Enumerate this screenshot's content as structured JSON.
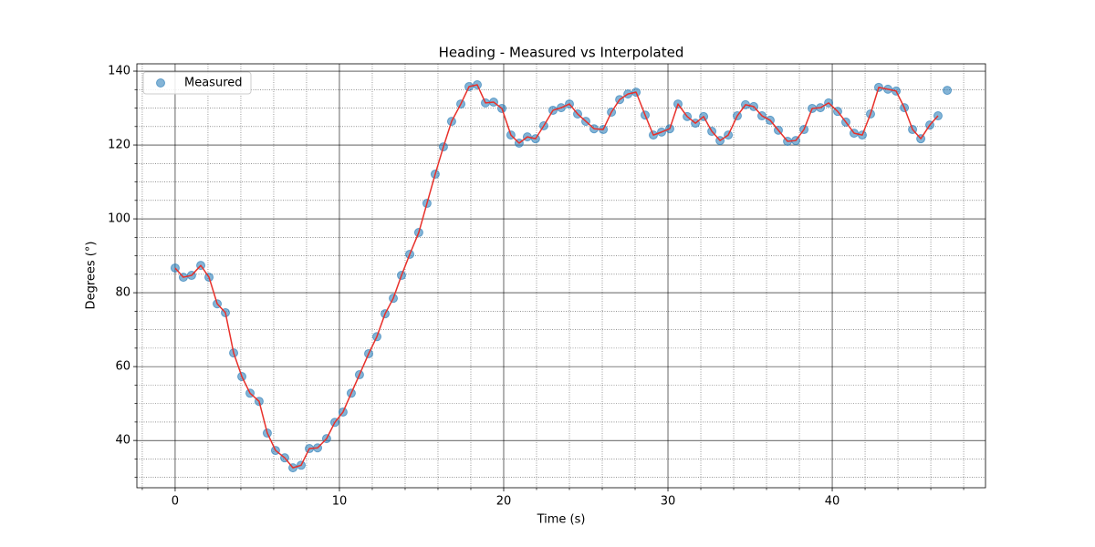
{
  "chart_data": {
    "type": "scatter-line",
    "title": "Heading - Measured vs Interpolated",
    "xlabel": "Time (s)",
    "ylabel": "Degrees (°)",
    "xlim": [
      -2.33,
      49.33
    ],
    "ylim": [
      27.2,
      141.98
    ],
    "xticks": [
      0,
      10,
      20,
      30,
      40
    ],
    "yticks": [
      40,
      60,
      80,
      100,
      120,
      140
    ],
    "xminor": [
      -2,
      2,
      4,
      6,
      8,
      12,
      14,
      16,
      18,
      22,
      24,
      26,
      28,
      32,
      34,
      36,
      38,
      42,
      44,
      46,
      48
    ],
    "yminor": [
      30,
      35,
      45,
      50,
      55,
      65,
      70,
      75,
      85,
      90,
      95,
      105,
      110,
      115,
      125,
      130,
      135
    ],
    "grid": true,
    "legend": "upper left",
    "x": [
      0,
      0.5,
      1.0,
      1.56,
      2.06,
      2.56,
      3.06,
      3.56,
      4.06,
      4.56,
      5.11,
      5.61,
      6.11,
      6.67,
      7.17,
      7.67,
      8.17,
      8.67,
      9.22,
      9.72,
      10.22,
      10.72,
      11.22,
      11.78,
      12.28,
      12.78,
      13.28,
      13.78,
      14.28,
      14.83,
      15.33,
      15.83,
      16.33,
      16.83,
      17.39,
      17.89,
      18.39,
      18.89,
      19.39,
      19.89,
      20.44,
      20.94,
      21.44,
      21.94,
      22.44,
      23.0,
      23.5,
      24.0,
      24.5,
      25.0,
      25.5,
      26.06,
      26.56,
      27.06,
      27.56,
      28.06,
      28.61,
      29.11,
      29.61,
      30.11,
      30.61,
      31.17,
      31.67,
      32.17,
      32.67,
      33.17,
      33.67,
      34.22,
      34.72,
      35.22,
      35.72,
      36.22,
      36.72,
      37.28,
      37.78,
      38.28,
      38.78,
      39.28,
      39.78,
      40.33,
      40.83,
      41.33,
      41.83,
      42.33,
      42.83,
      43.39,
      43.89,
      44.39,
      44.89,
      45.39,
      45.94,
      46.44,
      47.0
    ],
    "series": [
      {
        "name": "Measured",
        "color": "#1f77b4",
        "kind": "scatter",
        "values": [
          86.7,
          84.2,
          84.7,
          87.4,
          84.2,
          77.0,
          74.6,
          63.7,
          57.3,
          52.8,
          50.6,
          42.0,
          37.3,
          35.3,
          32.6,
          33.3,
          37.8,
          38.0,
          40.5,
          44.9,
          47.7,
          52.8,
          57.8,
          63.5,
          68.1,
          74.3,
          78.5,
          84.7,
          90.4,
          96.3,
          104.2,
          112.1,
          119.5,
          126.4,
          131.1,
          135.8,
          136.3,
          131.4,
          131.6,
          129.9,
          122.7,
          120.5,
          122.2,
          121.7,
          125.2,
          129.4,
          130.1,
          131.1,
          128.4,
          126.4,
          124.4,
          124.2,
          128.9,
          132.3,
          133.8,
          134.3,
          128.1,
          122.7,
          123.5,
          124.4,
          131.1,
          127.7,
          125.9,
          127.7,
          123.7,
          121.2,
          122.7,
          127.9,
          130.9,
          130.4,
          127.9,
          126.7,
          124.0,
          121.0,
          121.2,
          124.2,
          129.9,
          130.1,
          131.4,
          129.1,
          126.2,
          123.2,
          122.7,
          128.4,
          135.6,
          135.1,
          134.6,
          130.1,
          124.2,
          121.7,
          125.4,
          127.9,
          134.8
        ]
      },
      {
        "color": "#e8302a",
        "kind": "line",
        "values": [
          86.7,
          84.2,
          84.7,
          87.4,
          84.2,
          77.0,
          74.6,
          63.7,
          57.3,
          52.8,
          50.6,
          42.0,
          37.3,
          35.3,
          32.6,
          33.3,
          37.8,
          38.0,
          40.5,
          44.9,
          47.7,
          52.8,
          57.8,
          63.5,
          68.1,
          74.3,
          78.5,
          84.7,
          90.4,
          96.3,
          104.2,
          112.1,
          119.5,
          126.4,
          131.1,
          135.8,
          136.3,
          131.4,
          131.6,
          129.9,
          122.7,
          120.5,
          122.2,
          121.7,
          125.2,
          129.4,
          130.1,
          131.1,
          128.4,
          126.4,
          124.4,
          124.2,
          128.9,
          132.3,
          133.8,
          134.3,
          128.1,
          122.7,
          123.5,
          124.4,
          131.1,
          127.7,
          125.9,
          127.7,
          123.7,
          121.2,
          122.7,
          127.9,
          130.9,
          130.4,
          127.9,
          126.7,
          124.0,
          121.0,
          121.2,
          124.2,
          129.9,
          130.1,
          131.4,
          129.1,
          126.2,
          123.2,
          122.7,
          128.4,
          135.6,
          135.1,
          134.6,
          130.1,
          124.2,
          121.7,
          125.4,
          127.9,
          null
        ]
      }
    ]
  }
}
